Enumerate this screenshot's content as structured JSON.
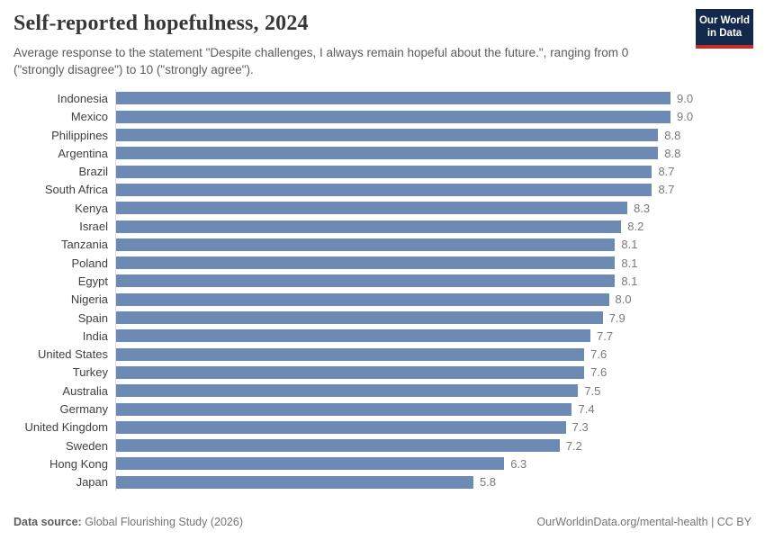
{
  "header": {
    "title": "Self-reported hopefulness, 2024",
    "subtitle": "Average response to the statement \"Despite challenges, I always remain hopeful about the future.\", ranging from 0 (\"strongly disagree\") to 10 (\"strongly agree\").",
    "logo": {
      "line1": "Our World",
      "line2": "in Data"
    }
  },
  "chart_data": {
    "type": "bar",
    "orientation": "horizontal",
    "title": "Self-reported hopefulness, 2024",
    "xlabel": "",
    "ylabel": "",
    "xlim": [
      0,
      9.0
    ],
    "grid": false,
    "legend": "none",
    "bar_color": "#6d8ab5",
    "axis_line_color": "#dcdcdc",
    "categories": [
      "Indonesia",
      "Mexico",
      "Philippines",
      "Argentina",
      "Brazil",
      "South Africa",
      "Kenya",
      "Israel",
      "Tanzania",
      "Poland",
      "Egypt",
      "Nigeria",
      "Spain",
      "India",
      "United States",
      "Turkey",
      "Australia",
      "Germany",
      "United Kingdom",
      "Sweden",
      "Hong Kong",
      "Japan"
    ],
    "values": [
      9.0,
      9.0,
      8.8,
      8.8,
      8.7,
      8.7,
      8.3,
      8.2,
      8.1,
      8.1,
      8.1,
      8.0,
      7.9,
      7.7,
      7.6,
      7.6,
      7.5,
      7.4,
      7.3,
      7.2,
      6.3,
      5.8
    ]
  },
  "footer": {
    "source_label": "Data source:",
    "source_value": " Global Flourishing Study (2026)",
    "rights": "OurWorldinData.org/mental-health | CC BY"
  },
  "colors": {
    "bar": "#6d8ab5",
    "logo_navy": "#13294b",
    "logo_red": "#c62d29",
    "title_text": "#373737",
    "muted_text": "#5b5b5b"
  }
}
